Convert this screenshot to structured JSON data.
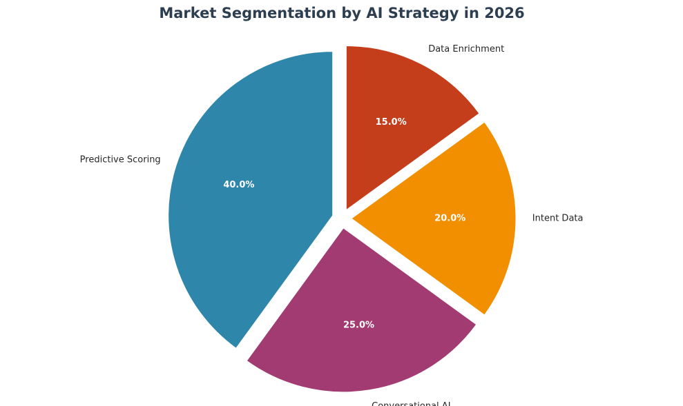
{
  "chart_data": {
    "type": "pie",
    "title": "Market Segmentation by AI Strategy in 2026",
    "start_angle_deg": 90,
    "direction": "clockwise",
    "exploded": true,
    "slices": [
      {
        "label": "Data Enrichment",
        "value": 15.0,
        "pct_label": "15.0%",
        "color": "#C43E1C"
      },
      {
        "label": "Intent Data",
        "value": 20.0,
        "pct_label": "20.0%",
        "color": "#F18F01"
      },
      {
        "label": "Conversational AI",
        "value": 25.0,
        "pct_label": "25.0%",
        "color": "#A23B72"
      },
      {
        "label": "Predictive Scoring",
        "value": 40.0,
        "pct_label": "40.0%",
        "color": "#2E86AB"
      }
    ]
  },
  "colors": {
    "title": "#2C3E50",
    "slice_edge": "#ffffff",
    "label_text": "#262626",
    "pct_text": "#ffffff"
  }
}
